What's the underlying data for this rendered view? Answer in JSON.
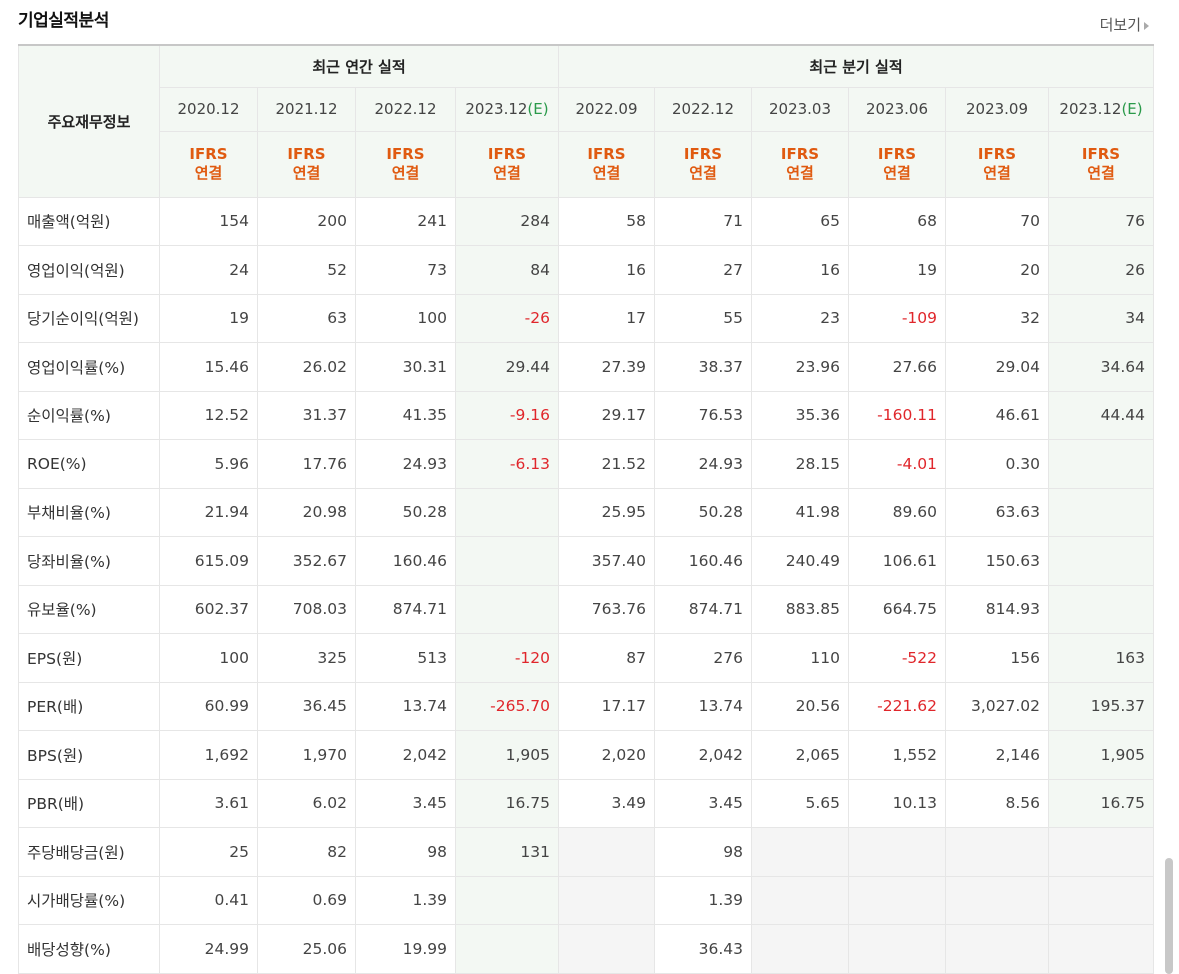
{
  "title": "기업실적분석",
  "more_label": "더보기",
  "header": {
    "info_label": "주요재무정보",
    "annual_label": "최근 연간 실적",
    "quarter_label": "최근 분기 실적",
    "estimate_mark": "(E)",
    "ifrs_line1": "IFRS",
    "ifrs_line2": "연결",
    "periods": [
      {
        "label": "2020.12"
      },
      {
        "label": "2021.12"
      },
      {
        "label": "2022.12"
      },
      {
        "label": "2023.12"
      },
      {
        "label": "2022.09"
      },
      {
        "label": "2022.12"
      },
      {
        "label": "2023.03"
      },
      {
        "label": "2023.06"
      },
      {
        "label": "2023.09"
      },
      {
        "label": "2023.12"
      }
    ]
  },
  "rows": [
    {
      "label": "매출액(억원)",
      "values": [
        "154",
        "200",
        "241",
        "284",
        "58",
        "71",
        "65",
        "68",
        "70",
        "76"
      ]
    },
    {
      "label": "영업이익(억원)",
      "values": [
        "24",
        "52",
        "73",
        "84",
        "16",
        "27",
        "16",
        "19",
        "20",
        "26"
      ]
    },
    {
      "label": "당기순이익(억원)",
      "values": [
        "19",
        "63",
        "100",
        "-26",
        "17",
        "55",
        "23",
        "-109",
        "32",
        "34"
      ]
    },
    {
      "label": "영업이익률(%)",
      "values": [
        "15.46",
        "26.02",
        "30.31",
        "29.44",
        "27.39",
        "38.37",
        "23.96",
        "27.66",
        "29.04",
        "34.64"
      ]
    },
    {
      "label": "순이익률(%)",
      "values": [
        "12.52",
        "31.37",
        "41.35",
        "-9.16",
        "29.17",
        "76.53",
        "35.36",
        "-160.11",
        "46.61",
        "44.44"
      ]
    },
    {
      "label": "ROE(%)",
      "values": [
        "5.96",
        "17.76",
        "24.93",
        "-6.13",
        "21.52",
        "24.93",
        "28.15",
        "-4.01",
        "0.30",
        ""
      ]
    },
    {
      "label": "부채비율(%)",
      "values": [
        "21.94",
        "20.98",
        "50.28",
        "",
        "25.95",
        "50.28",
        "41.98",
        "89.60",
        "63.63",
        ""
      ]
    },
    {
      "label": "당좌비율(%)",
      "values": [
        "615.09",
        "352.67",
        "160.46",
        "",
        "357.40",
        "160.46",
        "240.49",
        "106.61",
        "150.63",
        ""
      ]
    },
    {
      "label": "유보율(%)",
      "values": [
        "602.37",
        "708.03",
        "874.71",
        "",
        "763.76",
        "874.71",
        "883.85",
        "664.75",
        "814.93",
        ""
      ]
    },
    {
      "label": "EPS(원)",
      "values": [
        "100",
        "325",
        "513",
        "-120",
        "87",
        "276",
        "110",
        "-522",
        "156",
        "163"
      ]
    },
    {
      "label": "PER(배)",
      "values": [
        "60.99",
        "36.45",
        "13.74",
        "-265.70",
        "17.17",
        "13.74",
        "20.56",
        "-221.62",
        "3,027.02",
        "195.37"
      ]
    },
    {
      "label": "BPS(원)",
      "values": [
        "1,692",
        "1,970",
        "2,042",
        "1,905",
        "2,020",
        "2,042",
        "2,065",
        "1,552",
        "2,146",
        "1,905"
      ]
    },
    {
      "label": "PBR(배)",
      "values": [
        "3.61",
        "6.02",
        "3.45",
        "16.75",
        "3.49",
        "3.45",
        "5.65",
        "10.13",
        "8.56",
        "16.75"
      ]
    },
    {
      "label": "주당배당금(원)",
      "values": [
        "25",
        "82",
        "98",
        "131",
        "",
        "98",
        "",
        "",
        "",
        ""
      ]
    },
    {
      "label": "시가배당률(%)",
      "values": [
        "0.41",
        "0.69",
        "1.39",
        "",
        "",
        "1.39",
        "",
        "",
        "",
        ""
      ]
    },
    {
      "label": "배당성향(%)",
      "values": [
        "24.99",
        "25.06",
        "19.99",
        "",
        "",
        "36.43",
        "",
        "",
        "",
        ""
      ]
    }
  ],
  "colors": {
    "ifrs": "#e05a10",
    "estimate": "#2a9a4a",
    "negative": "#e0262b",
    "header_bg": "#f3f8f3"
  }
}
